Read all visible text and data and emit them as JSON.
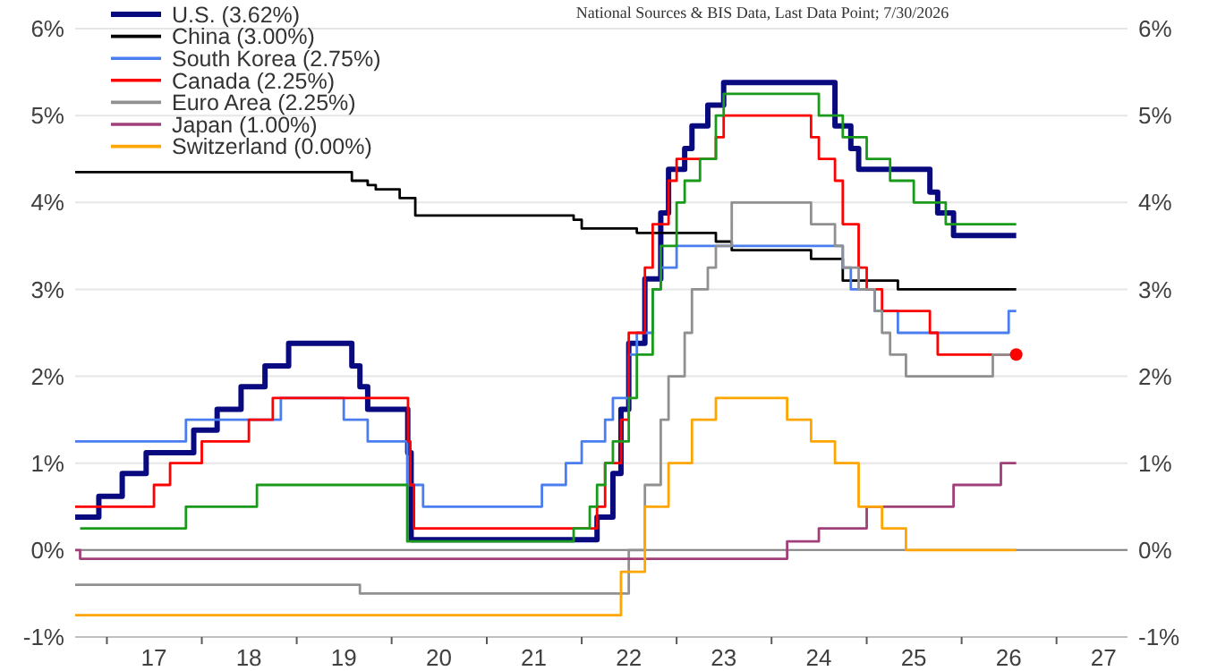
{
  "chart_data": {
    "type": "step",
    "annotations": [
      "National Sources & BIS Data, Last Data Point; 7/30/2026"
    ],
    "xlim": [
      "2016-09-01",
      "2027-10-01"
    ],
    "xticks": [
      {
        "value": "2017-01-01",
        "label": null
      },
      {
        "value": "2018-01-01",
        "label": null
      },
      {
        "value": "2019-01-01",
        "label": null
      },
      {
        "value": "2020-01-01",
        "label": null
      },
      {
        "value": "2021-01-01",
        "label": null
      },
      {
        "value": "2022-01-01",
        "label": null
      },
      {
        "value": "2023-01-01",
        "label": null
      },
      {
        "value": "2024-01-01",
        "label": null
      },
      {
        "value": "2025-01-01",
        "label": null
      },
      {
        "value": "2026-01-01",
        "label": null
      },
      {
        "value": "2027-01-01",
        "label": null
      },
      {
        "value": "2017-07-01",
        "label": "17"
      },
      {
        "value": "2018-07-01",
        "label": "18"
      },
      {
        "value": "2019-07-01",
        "label": "19"
      },
      {
        "value": "2020-07-01",
        "label": "20"
      },
      {
        "value": "2021-07-01",
        "label": "21"
      },
      {
        "value": "2022-07-01",
        "label": "22"
      },
      {
        "value": "2023-07-01",
        "label": "23"
      },
      {
        "value": "2024-07-01",
        "label": "24"
      },
      {
        "value": "2025-07-01",
        "label": "25"
      },
      {
        "value": "2026-07-01",
        "label": "26"
      },
      {
        "value": "2027-07-01",
        "label": "27"
      }
    ],
    "ylim": [
      -1,
      6
    ],
    "yticks": [
      {
        "value": -1,
        "label": "-1%"
      },
      {
        "value": 0,
        "label": "0%"
      },
      {
        "value": 1,
        "label": "1%"
      },
      {
        "value": 2,
        "label": "2%"
      },
      {
        "value": 3,
        "label": "3%"
      },
      {
        "value": 4,
        "label": "4%"
      },
      {
        "value": 5,
        "label": "5%"
      },
      {
        "value": 6,
        "label": "6%"
      }
    ],
    "y2lim": [
      -1,
      6
    ],
    "y2ticks": [
      {
        "value": -1,
        "label": "-1%"
      },
      {
        "value": 0,
        "label": "0%"
      },
      {
        "value": 1,
        "label": "1%"
      },
      {
        "value": 2,
        "label": "2%"
      },
      {
        "value": 3,
        "label": "3%"
      },
      {
        "value": 4,
        "label": "4%"
      },
      {
        "value": 5,
        "label": "5%"
      },
      {
        "value": 6,
        "label": "6%"
      }
    ],
    "grid": "y",
    "legend": "top left",
    "line_style": "solid",
    "ref_lines": [
      {
        "axis": "y",
        "value": 0,
        "color": "#808080"
      }
    ],
    "series": [
      {
        "name": "U.S. (3.62%)",
        "color": "#0a0a80",
        "x": [
          "2016-09",
          "2016-12",
          "2017-03",
          "2017-06",
          "2017-12",
          "2018-03",
          "2018-06",
          "2018-09",
          "2018-12",
          "2019-08",
          "2019-09",
          "2019-10",
          "2020-03-03",
          "2020-03-16",
          "2022-03",
          "2022-05",
          "2022-06",
          "2022-07",
          "2022-09",
          "2022-11",
          "2022-12",
          "2023-02",
          "2023-03",
          "2023-05",
          "2023-07",
          "2024-09",
          "2024-11",
          "2024-12",
          "2025-09",
          "2025-10",
          "2025-12",
          "2026-07-30"
        ],
        "values": [
          0.38,
          0.62,
          0.88,
          1.12,
          1.38,
          1.62,
          1.88,
          2.12,
          2.38,
          2.12,
          1.88,
          1.62,
          1.12,
          0.12,
          0.38,
          0.88,
          1.62,
          2.38,
          3.12,
          3.88,
          4.38,
          4.62,
          4.88,
          5.12,
          5.38,
          4.88,
          4.62,
          4.38,
          4.12,
          3.88,
          3.62,
          3.62
        ]
      },
      {
        "name": "China (3.00%)",
        "color": "#000000",
        "x": [
          "2016-09",
          "2019-08",
          "2019-10",
          "2019-11",
          "2020-02",
          "2020-04",
          "2021-12",
          "2022-01",
          "2022-08",
          "2023-06",
          "2023-08",
          "2024-06",
          "2024-10",
          "2025-05",
          "2026-07-30"
        ],
        "values": [
          4.35,
          4.25,
          4.2,
          4.15,
          4.05,
          3.85,
          3.8,
          3.7,
          3.65,
          3.55,
          3.45,
          3.35,
          3.1,
          3.0,
          3.0
        ]
      },
      {
        "name": "South Korea (2.75%)",
        "color": "#4a7ef0",
        "x": [
          "2016-09",
          "2017-11",
          "2018-11",
          "2019-07",
          "2019-10",
          "2020-03",
          "2020-05",
          "2021-08",
          "2021-11",
          "2022-01",
          "2022-04",
          "2022-05",
          "2022-07",
          "2022-08",
          "2022-10",
          "2022-11",
          "2023-01",
          "2024-10",
          "2024-11",
          "2025-02",
          "2025-05",
          "2026-07-01",
          "2026-07-30"
        ],
        "values": [
          1.25,
          1.5,
          1.75,
          1.5,
          1.25,
          0.75,
          0.5,
          0.75,
          1.0,
          1.25,
          1.5,
          1.75,
          2.25,
          2.5,
          3.0,
          3.25,
          3.5,
          3.25,
          3.0,
          2.75,
          2.5,
          2.75,
          2.75
        ]
      },
      {
        "name": "Canada (2.25%)",
        "color": "#ff0000",
        "x": [
          "2016-09",
          "2017-07",
          "2017-09",
          "2018-01",
          "2018-07",
          "2018-10",
          "2020-03-04",
          "2020-03-13",
          "2020-03-27",
          "2022-03",
          "2022-04",
          "2022-06",
          "2022-07",
          "2022-09",
          "2022-10",
          "2022-12",
          "2023-01",
          "2023-06",
          "2023-07",
          "2024-06",
          "2024-07",
          "2024-09",
          "2024-10",
          "2024-12",
          "2025-01",
          "2025-03",
          "2025-09",
          "2025-10",
          "2026-07-30"
        ],
        "values": [
          0.5,
          0.75,
          1.0,
          1.25,
          1.5,
          1.75,
          1.25,
          0.75,
          0.25,
          0.5,
          1.0,
          1.5,
          2.5,
          3.25,
          3.75,
          4.25,
          4.5,
          4.75,
          5.0,
          4.75,
          4.5,
          4.25,
          3.75,
          3.25,
          3.0,
          2.75,
          2.5,
          2.25,
          2.25
        ]
      },
      {
        "name": "Euro Area (2.25%)",
        "color": "#909090",
        "x": [
          "2016-09",
          "2019-09",
          "2022-07",
          "2022-09",
          "2022-11",
          "2022-12",
          "2023-02",
          "2023-03",
          "2023-05",
          "2023-06",
          "2023-08",
          "2024-06",
          "2024-09",
          "2024-10",
          "2024-12",
          "2025-02",
          "2025-03",
          "2025-04",
          "2025-06",
          "2026-05",
          "2026-07-30"
        ],
        "values": [
          -0.4,
          -0.5,
          0.0,
          0.75,
          1.5,
          2.0,
          2.5,
          3.0,
          3.25,
          3.5,
          4.0,
          3.75,
          3.5,
          3.25,
          3.0,
          2.75,
          2.5,
          2.25,
          2.0,
          2.25,
          2.25
        ]
      },
      {
        "name": "Japan (1.00%)",
        "color": "#a0407a",
        "x": [
          "2016-09-01",
          "2016-09-20",
          "2024-03",
          "2024-07",
          "2025-01",
          "2025-12",
          "2026-06",
          "2026-07-30"
        ],
        "values": [
          0.0,
          -0.1,
          0.1,
          0.25,
          0.5,
          0.75,
          1.0,
          1.0
        ]
      },
      {
        "name": "Switzerland (0.00%)",
        "color": "#ffa500",
        "x": [
          "2016-09",
          "2022-06",
          "2022-09",
          "2022-12",
          "2023-03",
          "2023-06",
          "2024-03",
          "2024-06",
          "2024-09",
          "2024-12",
          "2025-03",
          "2025-06",
          "2026-07-30"
        ],
        "values": [
          -0.75,
          -0.25,
          0.5,
          1.0,
          1.5,
          1.75,
          1.5,
          1.25,
          1.0,
          0.5,
          0.25,
          0.0,
          0.0
        ]
      },
      {
        "color": "#1a9a1a",
        "x": [
          "2016-09-20",
          "2017-11",
          "2018-08",
          "2020-03",
          "2021-12",
          "2022-02",
          "2022-03",
          "2022-04",
          "2022-05",
          "2022-07",
          "2022-08",
          "2022-10",
          "2022-11",
          "2023-01",
          "2023-02",
          "2023-04",
          "2023-06",
          "2023-07",
          "2024-07",
          "2024-10",
          "2025-01",
          "2025-04",
          "2025-07",
          "2025-11",
          "2026-07-30"
        ],
        "values": [
          0.25,
          0.5,
          0.75,
          0.1,
          0.25,
          0.5,
          0.75,
          1.0,
          1.25,
          1.75,
          2.25,
          3.0,
          3.5,
          4.0,
          4.25,
          4.5,
          5.0,
          5.25,
          5.0,
          4.75,
          4.5,
          4.25,
          4.0,
          3.75,
          3.75
        ]
      },
      {
        "type": "scatter",
        "marker": "circle",
        "color": "#ff0000",
        "x": [
          "2026-07-30"
        ],
        "values": [
          2.25
        ]
      }
    ]
  }
}
